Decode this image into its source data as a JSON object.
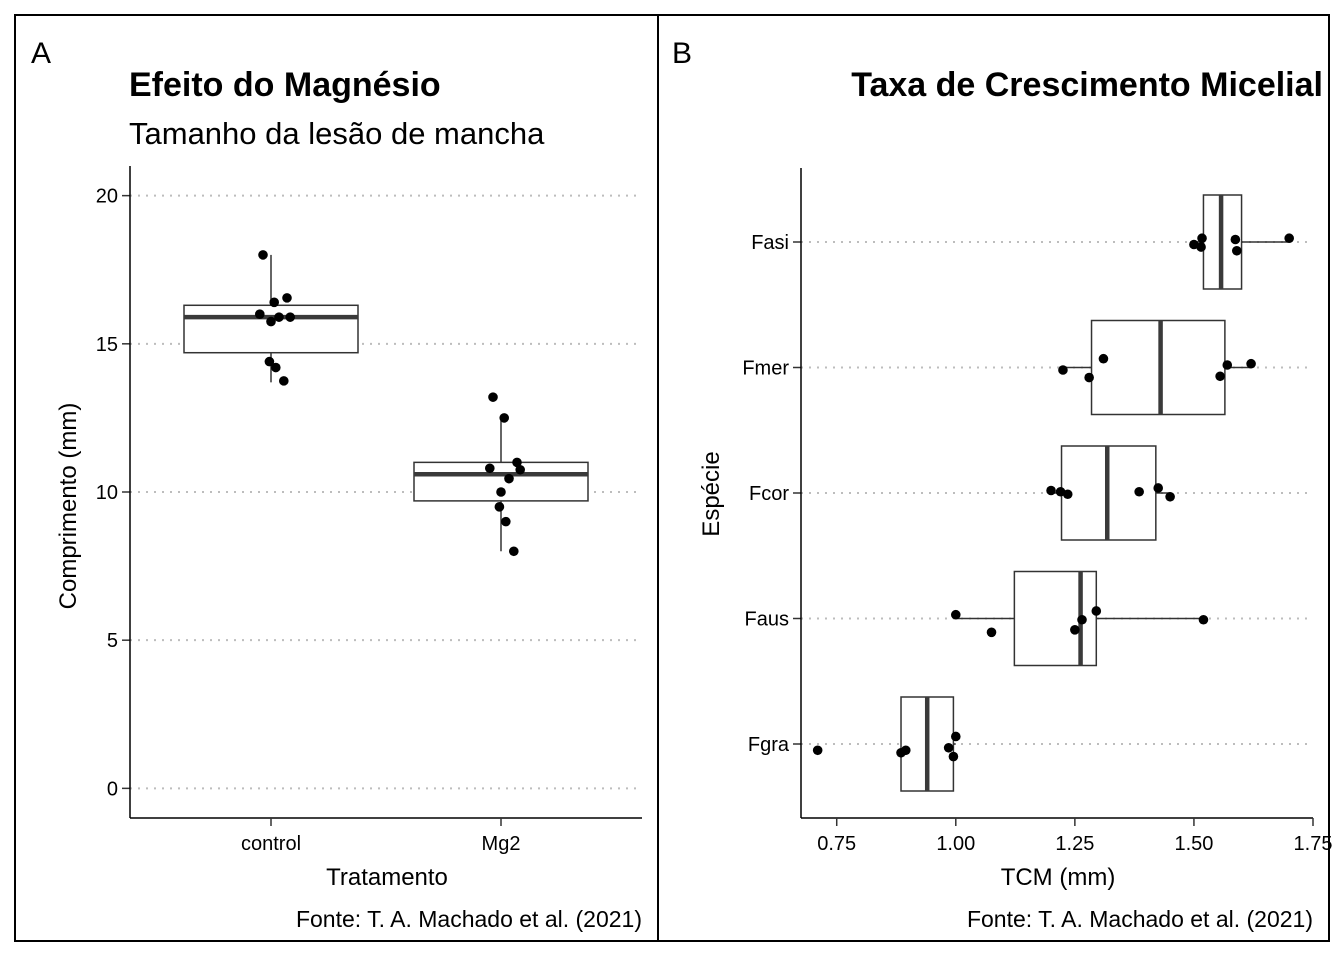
{
  "panels": {
    "a": {
      "tag": "A",
      "title": "Efeito do Magnésio",
      "subtitle": "Tamanho da lesão de mancha",
      "xlabel": "Tratamento",
      "ylabel": "Comprimento (mm)",
      "caption": "Fonte: T. A. Machado et al. (2021)"
    },
    "b": {
      "tag": "B",
      "title": "Taxa de Crescimento Micelial",
      "xlabel": "TCM (mm)",
      "ylabel": "Espécie",
      "caption": "Fonte: T. A. Machado et al. (2021)"
    }
  },
  "chart_data": [
    {
      "type": "boxplot",
      "orientation": "vertical",
      "title": "Efeito do Magnésio",
      "subtitle": "Tamanho da lesão de mancha",
      "xlabel": "Tratamento",
      "ylabel": "Comprimento (mm)",
      "categories": [
        "control",
        "Mg2"
      ],
      "ylim": [
        -1,
        21
      ],
      "yticks": [
        0,
        5,
        10,
        15,
        20
      ],
      "gridlines": "horizontal-dotted",
      "boxes": [
        {
          "category": "control",
          "min": 13.7,
          "q1": 14.7,
          "median": 15.9,
          "q3": 16.3,
          "max": 18.0
        },
        {
          "category": "Mg2",
          "min": 8.0,
          "q1": 9.7,
          "median": 10.6,
          "q3": 11.0,
          "max": 12.5
        }
      ],
      "points": [
        {
          "category": "control",
          "values": [
            18.0,
            16.4,
            16.55,
            15.9,
            16.0,
            15.9,
            15.75,
            14.4,
            14.2,
            13.75
          ]
        },
        {
          "category": "Mg2",
          "values": [
            13.2,
            12.5,
            11.0,
            10.75,
            10.8,
            10.45,
            10.0,
            9.5,
            9.0,
            8.0
          ]
        }
      ]
    },
    {
      "type": "boxplot",
      "orientation": "horizontal",
      "title": "Taxa de Crescimento Micelial",
      "xlabel": "TCM (mm)",
      "ylabel": "Espécie",
      "categories": [
        "Fasi",
        "Fmer",
        "Fcor",
        "Faus",
        "Fgra"
      ],
      "xlim": [
        0.675,
        1.75
      ],
      "xticks": [
        0.75,
        1.0,
        1.25,
        1.5,
        1.75
      ],
      "xticklabels": [
        "0.75",
        "1.00",
        "1.25",
        "1.50",
        "1.75"
      ],
      "gridlines": "horizontal-dotted",
      "boxes": [
        {
          "category": "Fasi",
          "min": 1.5,
          "q1": 1.52,
          "median": 1.557,
          "q3": 1.6,
          "max": 1.7
        },
        {
          "category": "Fmer",
          "min": 1.225,
          "q1": 1.285,
          "median": 1.43,
          "q3": 1.565,
          "max": 1.62
        },
        {
          "category": "Fcor",
          "min": 1.2,
          "q1": 1.222,
          "median": 1.318,
          "q3": 1.42,
          "max": 1.45
        },
        {
          "category": "Faus",
          "min": 1.0,
          "q1": 1.123,
          "median": 1.262,
          "q3": 1.295,
          "max": 1.52
        },
        {
          "category": "Fgra",
          "min": 0.885,
          "q1": 0.885,
          "median": 0.94,
          "q3": 0.995,
          "max": 1.0
        }
      ],
      "points": [
        {
          "category": "Fasi",
          "values": [
            1.5,
            1.515,
            1.517,
            1.59,
            1.587,
            1.7
          ],
          "offsets": [
            0.02,
            0.04,
            -0.03,
            0.07,
            -0.02,
            -0.03
          ]
        },
        {
          "category": "Fmer",
          "values": [
            1.225,
            1.28,
            1.31,
            1.555,
            1.57,
            1.62
          ],
          "offsets": [
            0.02,
            0.08,
            -0.07,
            0.07,
            -0.02,
            -0.03
          ]
        },
        {
          "category": "Fcor",
          "values": [
            1.2,
            1.22,
            1.235,
            1.385,
            1.425,
            1.45
          ],
          "offsets": [
            -0.02,
            -0.01,
            0.01,
            -0.01,
            -0.04,
            0.03
          ]
        },
        {
          "category": "Faus",
          "values": [
            1.0,
            1.075,
            1.25,
            1.265,
            1.295,
            1.52
          ],
          "offsets": [
            -0.03,
            0.11,
            0.09,
            0.01,
            -0.06,
            0.01
          ]
        },
        {
          "category": "Fgra",
          "values": [
            0.71,
            0.885,
            0.895,
            0.985,
            0.995,
            1.0
          ],
          "offsets": [
            0.05,
            0.07,
            0.05,
            0.03,
            0.1,
            -0.06
          ]
        }
      ]
    }
  ]
}
